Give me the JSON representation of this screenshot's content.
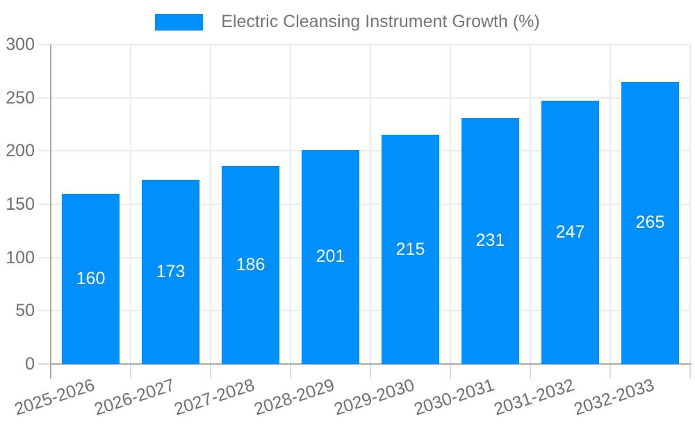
{
  "page": {
    "background": "#ffffff"
  },
  "legend": {
    "swatch_color": "#008FFB"
  },
  "chart_data": {
    "type": "bar",
    "title": "Electric Cleansing Instrument Growth (%)",
    "categories": [
      "2025-2026",
      "2026-2027",
      "2027-2028",
      "2028-2029",
      "2029-2030",
      "2030-2031",
      "2031-2032",
      "2032-2033"
    ],
    "values": [
      160,
      173,
      186,
      201,
      215,
      231,
      247,
      265
    ],
    "bar_color": "#008FFB",
    "value_label_color": "#ffffff",
    "axis_label_color": "#6f6f6f",
    "title_color": "#757575",
    "grid_color": "#ebebeb",
    "axis_line_color": "#a9a9a9",
    "xlabel": "",
    "ylabel": "",
    "ylim": [
      0,
      300
    ],
    "yticks": [
      0,
      50,
      100,
      150,
      200,
      250,
      300
    ],
    "grid": true,
    "legend_position": "top"
  }
}
